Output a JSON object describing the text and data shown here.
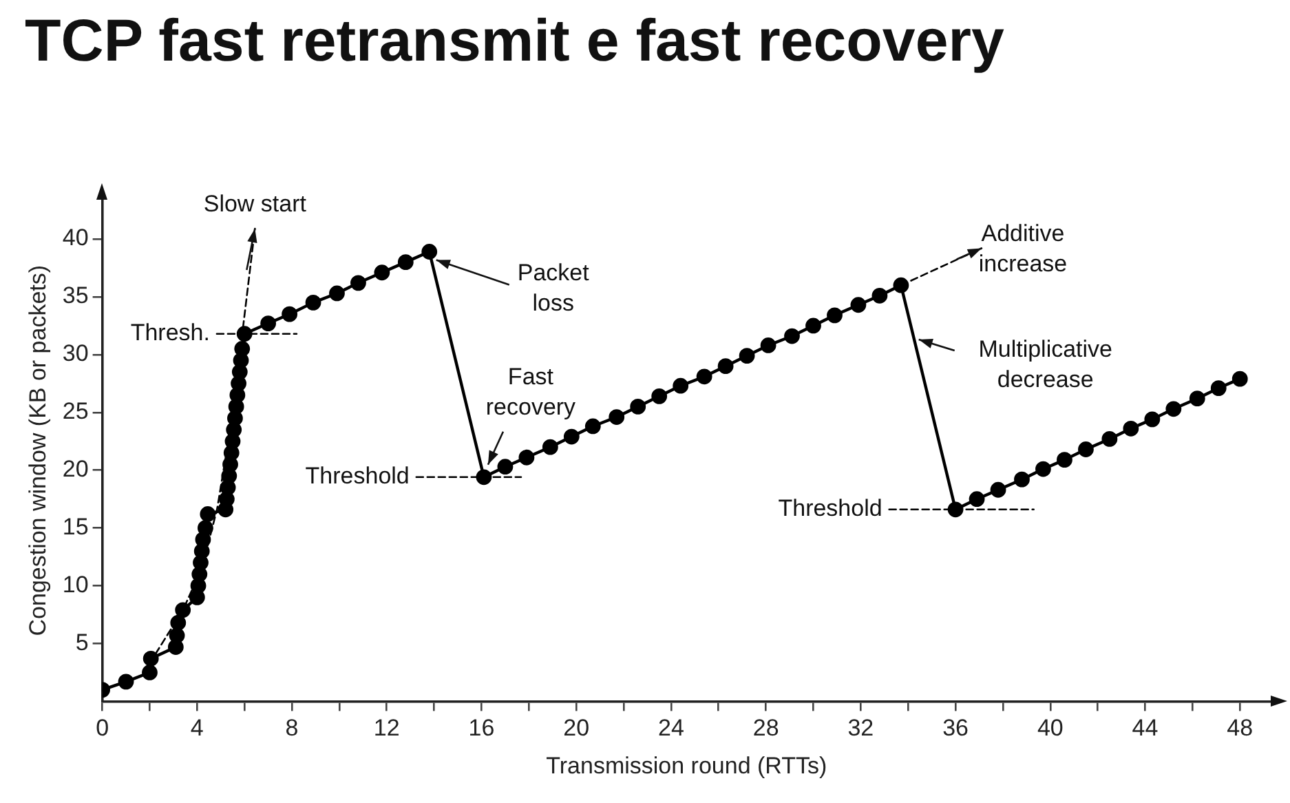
{
  "chart_data": {
    "type": "line",
    "title": "TCP fast retransmit e fast recovery",
    "xlabel": "Transmission round (RTTs)",
    "ylabel": "Congestion window (KB or packets)",
    "xlim": [
      0,
      49.3
    ],
    "ylim": [
      0,
      43.4
    ],
    "xticks": [
      0,
      {
        "value": 2,
        "label": null
      },
      4,
      {
        "value": 6,
        "label": null
      },
      8,
      {
        "value": 10,
        "label": null
      },
      12,
      {
        "value": 14,
        "label": null
      },
      16,
      {
        "value": 18,
        "label": null
      },
      20,
      {
        "value": 22,
        "label": null
      },
      24,
      {
        "value": 26,
        "label": null
      },
      28,
      {
        "value": 30,
        "label": null
      },
      32,
      {
        "value": 34,
        "label": null
      },
      36,
      {
        "value": 38,
        "label": null
      },
      40,
      {
        "value": 42,
        "label": null
      },
      44,
      {
        "value": 46,
        "label": null
      },
      48
    ],
    "yticks": [
      5,
      10,
      15,
      20,
      25,
      30,
      35,
      40
    ],
    "marker": "circle",
    "line_style": "solid",
    "series": [
      {
        "color": "#000000",
        "x": [
          0,
          1,
          2,
          2.05,
          3.1,
          3.15,
          3.2,
          3.4,
          4.0,
          4.05,
          4.1,
          4.15,
          4.2,
          4.25,
          4.35,
          4.45,
          5.2,
          5.25,
          5.3,
          5.35,
          5.4,
          5.45,
          5.5,
          5.55,
          5.6,
          5.65,
          5.7,
          5.75,
          5.8,
          5.85,
          5.9,
          6.0,
          7.0,
          7.9,
          8.9,
          9.9,
          10.8,
          11.8,
          12.8,
          13.8,
          16.1,
          17.0,
          17.9,
          18.9,
          19.8,
          20.7,
          21.7,
          22.6,
          23.5,
          24.4,
          25.4,
          26.3,
          27.2,
          28.1,
          29.1,
          30.0,
          30.9,
          31.9,
          32.8,
          33.7,
          36.0,
          36.9,
          37.8,
          38.8,
          39.7,
          40.6,
          41.5,
          42.5,
          43.4,
          44.3,
          45.2,
          46.2,
          47.1,
          48.0
        ],
        "values": [
          1,
          1.7,
          2.5,
          3.7,
          4.7,
          5.7,
          6.8,
          7.9,
          9,
          10,
          11,
          12,
          13,
          14,
          15,
          16.2,
          16.6,
          17.5,
          18.5,
          19.5,
          20.5,
          21.5,
          22.5,
          23.5,
          24.5,
          25.5,
          26.5,
          27.5,
          28.5,
          29.5,
          30.5,
          31.8,
          32.7,
          33.5,
          34.5,
          35.3,
          36.2,
          37.1,
          38.0,
          38.9,
          19.4,
          20.3,
          21.1,
          22.0,
          22.9,
          23.8,
          24.6,
          25.5,
          26.4,
          27.3,
          28.1,
          29.0,
          29.9,
          30.8,
          31.6,
          32.5,
          33.4,
          34.3,
          35.1,
          36.0,
          16.6,
          17.5,
          18.3,
          19.2,
          20.1,
          20.9,
          21.8,
          22.7,
          23.6,
          24.4,
          25.3,
          26.2,
          27.1,
          27.9
        ]
      },
      {
        "color": "#000000",
        "marker": "none",
        "line_style": "dashed",
        "x": [
          2,
          3.4,
          4.2,
          4.85,
          5.3,
          5.8,
          6.44
        ],
        "values": [
          3.3,
          7.9,
          11.5,
          16.7,
          22.3,
          30,
          40.9
        ]
      },
      {
        "color": "#000000",
        "marker": "none",
        "line_style": "dashed",
        "x": [
          4.83,
          8.2
        ],
        "values": [
          31.8,
          31.8
        ]
      },
      {
        "color": "#000000",
        "marker": "none",
        "line_style": "dashed",
        "x": [
          13.25,
          17.67
        ],
        "values": [
          19.4,
          19.4
        ]
      },
      {
        "color": "#000000",
        "marker": "none",
        "line_style": "dashed",
        "x": [
          33.2,
          39.3
        ],
        "values": [
          16.6,
          16.6
        ]
      },
      {
        "color": "#000000",
        "marker": "none",
        "line_style": "dashed",
        "x": [
          33.7,
          37.1
        ],
        "values": [
          36.0,
          39.2
        ]
      }
    ],
    "annotations": [
      {
        "text": "Slow start",
        "x": 6.44,
        "y": 40.9
      },
      {
        "text": "Thresh.",
        "x": 4.83,
        "y": 31.8
      },
      {
        "text": "Packet\nloss",
        "x": 13.8,
        "y": 38.9
      },
      {
        "text": "Fast\nrecovery",
        "x": 16.1,
        "y": 19.4
      },
      {
        "text": "Threshold",
        "x": 13.25,
        "y": 19.4
      },
      {
        "text": "Additive\nincrease",
        "x": 37.1,
        "y": 39.2
      },
      {
        "text": "Multiplicative\ndecrease",
        "x": 34.45,
        "y": 31.3
      },
      {
        "text": "Threshold",
        "x": 33.2,
        "y": 16.6
      }
    ]
  }
}
